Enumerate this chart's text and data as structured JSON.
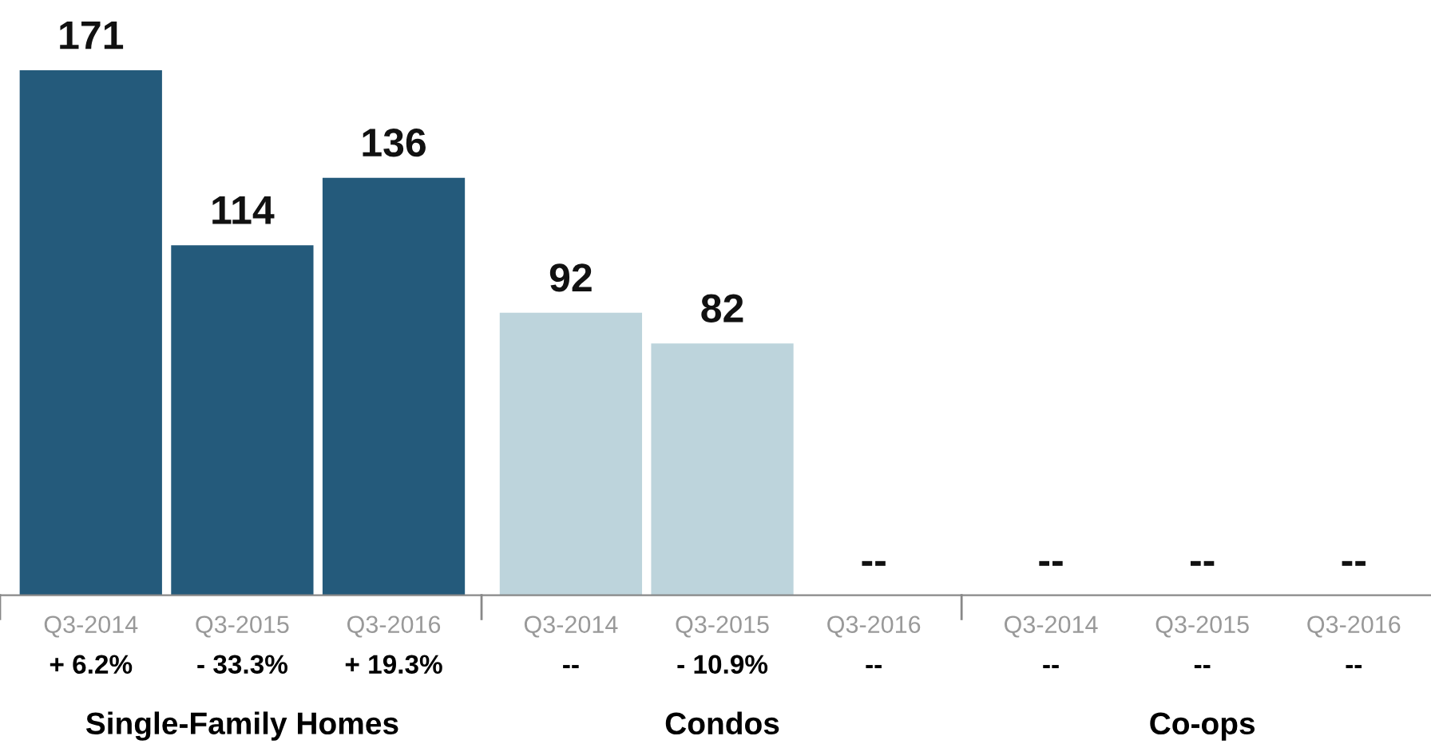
{
  "chart_data": {
    "type": "bar",
    "categories": [
      "Q3-2014",
      "Q3-2015",
      "Q3-2016",
      "Q3-2014",
      "Q3-2015",
      "Q3-2016",
      "Q3-2014",
      "Q3-2015",
      "Q3-2016"
    ],
    "series": [
      {
        "color": "#245a7b",
        "values": [
          171,
          114,
          136,
          null,
          null,
          null,
          null,
          null,
          null
        ],
        "value_labels": [
          "171",
          "114",
          "136",
          null,
          null,
          null,
          null,
          null,
          null
        ]
      },
      {
        "color": "#bdd4dc",
        "values": [
          null,
          null,
          null,
          92,
          82,
          null,
          null,
          null,
          null
        ],
        "value_labels": [
          null,
          null,
          null,
          "92",
          "82",
          "--",
          null,
          null,
          null
        ]
      },
      {
        "values": [
          null,
          null,
          null,
          null,
          null,
          null,
          null,
          null,
          null
        ],
        "value_labels": [
          null,
          null,
          null,
          null,
          null,
          null,
          "--",
          "--",
          "--"
        ]
      }
    ],
    "annotations": [
      "+ 6.2%",
      "- 33.3%",
      "+ 19.3%",
      "--",
      "- 10.9%",
      "--",
      "--",
      "--",
      "--",
      "Single-Family Homes",
      "Condos",
      "Co-ops"
    ],
    "grid": false,
    "legend": false
  }
}
